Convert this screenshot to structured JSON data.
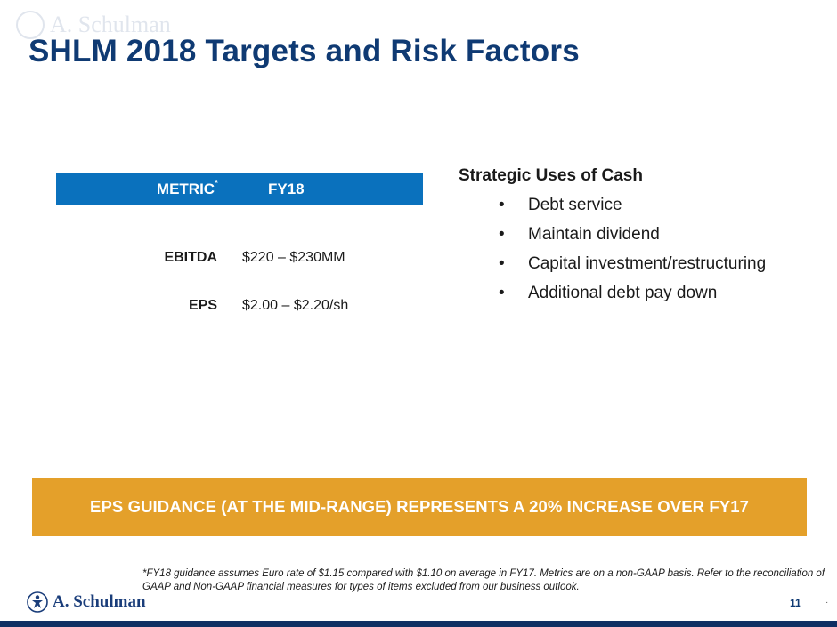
{
  "watermark": {
    "text": "A. Schulman"
  },
  "title": "SHLM 2018 Targets and Risk Factors",
  "metrics_table": {
    "headers": {
      "metric": "METRIC",
      "metric_marker": "*",
      "fy": "FY18"
    },
    "rows": [
      {
        "name": "EBITDA",
        "value": "$220 – $230MM"
      },
      {
        "name": "EPS",
        "value": "$2.00 – $2.20/sh"
      }
    ]
  },
  "strategy": {
    "title": "Strategic Uses of Cash",
    "bullet": "•",
    "items": [
      "Debt service",
      "Maintain dividend",
      "Capital investment/restructuring",
      "Additional debt pay down"
    ]
  },
  "banner": {
    "text": "EPS GUIDANCE (AT THE MID-RANGE) REPRESENTS A 20% INCREASE OVER FY17"
  },
  "footnote": "*FY18 guidance assumes Euro rate of $1.15 compared with $1.10 on average in FY17. Metrics are on a non-GAAP basis. Refer to the reconciliation of GAAP and Non-GAAP financial measures for types of items excluded from our business outlook.",
  "logo": {
    "text": "A. Schulman"
  },
  "page_number": "11",
  "page_dot": "·",
  "colors": {
    "title": "#0f3a73",
    "header_blue": "#0a71bd",
    "banner_orange": "#e4a02a",
    "footer_navy": "#0f2f63"
  }
}
